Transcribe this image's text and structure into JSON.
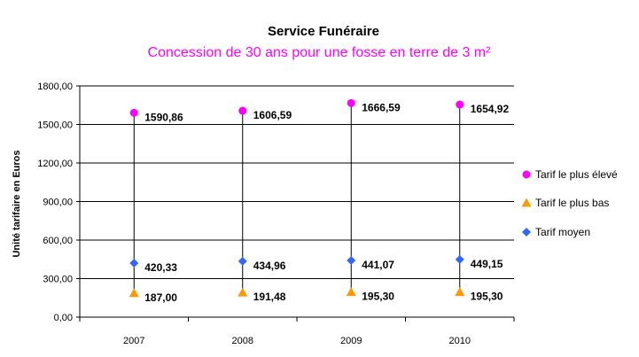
{
  "chart_data": {
    "type": "scatter",
    "title": "Service Funéraire",
    "subtitle": "Concession de 30 ans pour une fosse en terre de 3 m²",
    "ylabel": "Unité tarifaire en Euros",
    "xlabel": "",
    "ylim": [
      0,
      1800
    ],
    "yticks": [
      "0,00",
      "300,00",
      "600,00",
      "900,00",
      "1200,00",
      "1500,00",
      "1800,00"
    ],
    "categories": [
      "2007",
      "2008",
      "2009",
      "2010"
    ],
    "grid": "horizontal",
    "legend_position": "right",
    "series": [
      {
        "name": "Tarif le plus élevé",
        "marker": "circle",
        "color": "#ff00ff",
        "values": [
          1590.86,
          1606.59,
          1666.59,
          1654.92
        ],
        "labels": [
          "1590,86",
          "1606,59",
          "1666,59",
          "1654,92"
        ]
      },
      {
        "name": "Tarif le plus bas",
        "marker": "triangle",
        "color": "#ff9900",
        "values": [
          187.0,
          191.48,
          195.3,
          195.3
        ],
        "labels": [
          "187,00",
          "191,48",
          "195,30",
          "195,30"
        ]
      },
      {
        "name": "Tarif moyen",
        "marker": "diamond",
        "color": "#3366ff",
        "values": [
          420.33,
          434.96,
          441.07,
          449.15
        ],
        "labels": [
          "420,33",
          "434,96",
          "441,07",
          "449,15"
        ]
      }
    ]
  }
}
